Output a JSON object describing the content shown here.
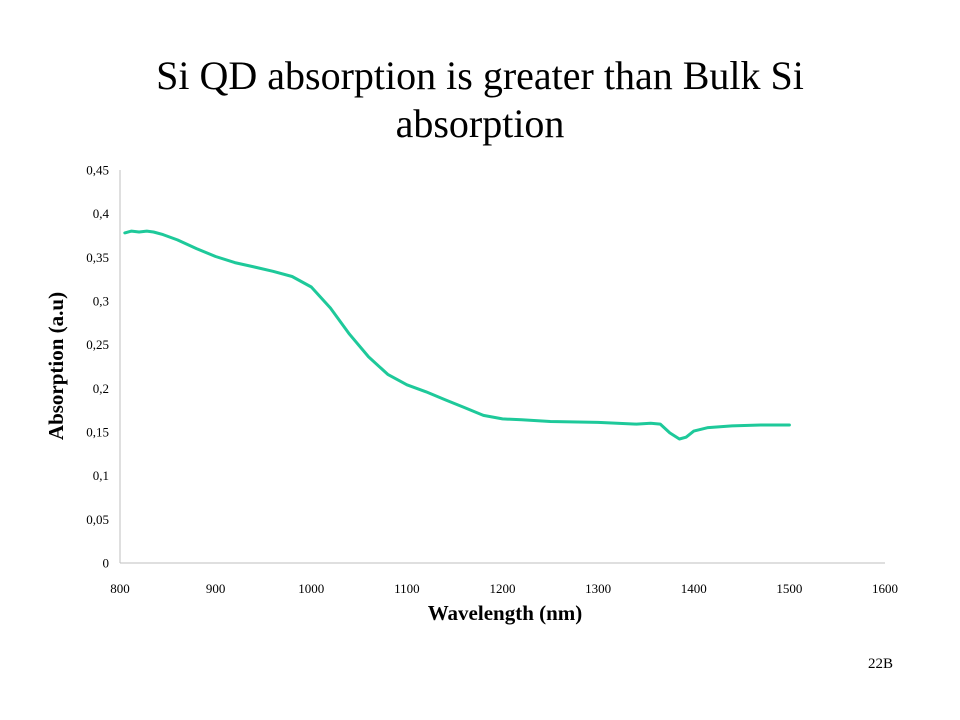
{
  "slide": {
    "title": "Si QD absorption is greater than Bulk Si absorption",
    "number": "22B"
  },
  "colors": {
    "series": "#1ec99a",
    "axis": "#bfbfbf"
  },
  "chart_data": {
    "type": "line",
    "title": "",
    "xlabel": "Wavelength (nm)",
    "ylabel": "Absorption (a.u)",
    "xlim": [
      800,
      1600
    ],
    "ylim": [
      0,
      0.45
    ],
    "x_ticks": [
      "800",
      "900",
      "1000",
      "1100",
      "1200",
      "1300",
      "1400",
      "1500",
      "1600"
    ],
    "y_ticks": [
      "0",
      "0,05",
      "0,1",
      "0,15",
      "0,2",
      "0,25",
      "0,3",
      "0,35",
      "0,4",
      "0,45"
    ],
    "grid": false,
    "legend": "none",
    "series": [
      {
        "x": [
          805,
          812,
          820,
          828,
          835,
          845,
          860,
          880,
          900,
          920,
          940,
          960,
          980,
          1000,
          1020,
          1040,
          1060,
          1080,
          1100,
          1120,
          1140,
          1160,
          1180,
          1200,
          1220,
          1250,
          1300,
          1340,
          1355,
          1365,
          1375,
          1385,
          1392,
          1400,
          1415,
          1440,
          1470,
          1500
        ],
        "y": [
          0.378,
          0.38,
          0.379,
          0.38,
          0.379,
          0.376,
          0.37,
          0.36,
          0.351,
          0.344,
          0.339,
          0.334,
          0.328,
          0.316,
          0.292,
          0.262,
          0.236,
          0.216,
          0.204,
          0.196,
          0.187,
          0.178,
          0.169,
          0.165,
          0.164,
          0.162,
          0.161,
          0.159,
          0.16,
          0.159,
          0.149,
          0.142,
          0.144,
          0.151,
          0.155,
          0.157,
          0.158,
          0.158
        ]
      }
    ]
  }
}
